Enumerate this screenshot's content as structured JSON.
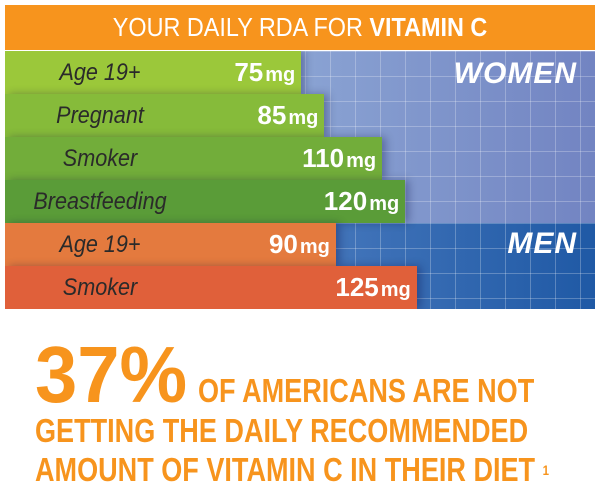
{
  "chart_data": {
    "type": "bar",
    "title_regular": "YOUR DAILY RDA FOR",
    "title_bold": "VITAMIN C",
    "unit": "mg",
    "groups": [
      {
        "name": "WOMEN",
        "categories": [
          "Age 19+",
          "Pregnant",
          "Smoker",
          "Breastfeeding"
        ],
        "values": [
          75,
          85,
          110,
          120
        ],
        "colors": [
          "#9bc83a",
          "#86bb3a",
          "#72ad3a",
          "#5a9c38"
        ]
      },
      {
        "name": "MEN",
        "categories": [
          "Age 19+",
          "Smoker"
        ],
        "values": [
          90,
          125
        ],
        "colors": [
          "#e47a3e",
          "#e0603a"
        ]
      }
    ]
  },
  "stat": {
    "percent": "37%",
    "line1": "OF AMERICANS ARE NOT",
    "line2": "GETTING THE DAILY RECOMMENDED",
    "line3": "AMOUNT OF VITAMIN C IN THEIR DIET",
    "footnote": "1"
  }
}
